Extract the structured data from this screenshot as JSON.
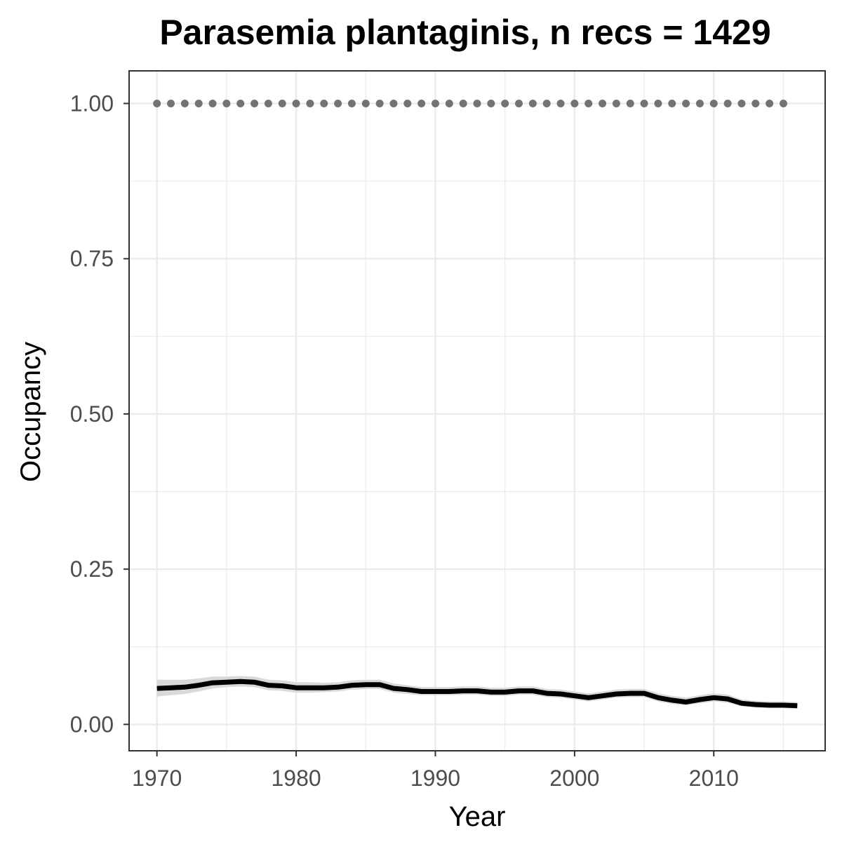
{
  "chart_data": {
    "type": "line",
    "title": "Parasemia plantaginis, n recs = 1429",
    "xlabel": "Year",
    "ylabel": "Occupancy",
    "xlim": [
      1968,
      2018
    ],
    "ylim": [
      -0.0425,
      1.0525
    ],
    "x_ticks": [
      1970,
      1980,
      1990,
      2000,
      2010
    ],
    "x_tick_labels": [
      "1970",
      "1980",
      "1990",
      "2000",
      "2010"
    ],
    "y_ticks": [
      0,
      0.25,
      0.5,
      0.75,
      1.0
    ],
    "y_tick_labels": [
      "0.00",
      "0.25",
      "0.50",
      "0.75",
      "1.00"
    ],
    "grid": true,
    "legend": "none",
    "colors": {
      "occupancy_line": "#000000",
      "confidence_band": "#d9d9d9",
      "reference_dots": "#737373",
      "grid": "#ebebeb",
      "panel_border": "#333333"
    },
    "series": [
      {
        "x": [
          1970,
          1971,
          1972,
          1973,
          1974,
          1975,
          1976,
          1977,
          1978,
          1979,
          1980,
          1981,
          1982,
          1983,
          1984,
          1985,
          1986,
          1987,
          1988,
          1989,
          1990,
          1991,
          1992,
          1993,
          1994,
          1995,
          1996,
          1997,
          1998,
          1999,
          2000,
          2001,
          2002,
          2003,
          2004,
          2005,
          2006,
          2007,
          2008,
          2009,
          2010,
          2011,
          2012,
          2013,
          2014,
          2015,
          2016
        ],
        "y": [
          0.058,
          0.059,
          0.06,
          0.063,
          0.067,
          0.068,
          0.069,
          0.068,
          0.063,
          0.062,
          0.059,
          0.059,
          0.059,
          0.06,
          0.063,
          0.064,
          0.064,
          0.058,
          0.056,
          0.053,
          0.053,
          0.053,
          0.054,
          0.054,
          0.052,
          0.052,
          0.054,
          0.054,
          0.05,
          0.049,
          0.046,
          0.043,
          0.046,
          0.049,
          0.05,
          0.05,
          0.043,
          0.039,
          0.036,
          0.04,
          0.043,
          0.041,
          0.034,
          0.032,
          0.031,
          0.031,
          0.03
        ],
        "lower": [
          0.045,
          0.047,
          0.049,
          0.053,
          0.058,
          0.06,
          0.061,
          0.06,
          0.055,
          0.054,
          0.051,
          0.051,
          0.052,
          0.053,
          0.056,
          0.057,
          0.057,
          0.051,
          0.049,
          0.047,
          0.047,
          0.047,
          0.048,
          0.048,
          0.046,
          0.046,
          0.048,
          0.048,
          0.044,
          0.043,
          0.04,
          0.037,
          0.04,
          0.043,
          0.044,
          0.044,
          0.037,
          0.033,
          0.031,
          0.034,
          0.037,
          0.035,
          0.029,
          0.027,
          0.026,
          0.026,
          0.025
        ],
        "upper": [
          0.072,
          0.072,
          0.072,
          0.074,
          0.077,
          0.077,
          0.078,
          0.077,
          0.072,
          0.071,
          0.068,
          0.068,
          0.067,
          0.068,
          0.071,
          0.072,
          0.072,
          0.066,
          0.063,
          0.06,
          0.06,
          0.06,
          0.061,
          0.061,
          0.059,
          0.059,
          0.061,
          0.061,
          0.057,
          0.056,
          0.053,
          0.05,
          0.053,
          0.056,
          0.057,
          0.057,
          0.05,
          0.046,
          0.043,
          0.047,
          0.05,
          0.048,
          0.04,
          0.038,
          0.037,
          0.037,
          0.036
        ]
      },
      {
        "x": [
          1970,
          1971,
          1972,
          1973,
          1974,
          1975,
          1976,
          1977,
          1978,
          1979,
          1980,
          1981,
          1982,
          1983,
          1984,
          1985,
          1986,
          1987,
          1988,
          1989,
          1990,
          1991,
          1992,
          1993,
          1994,
          1995,
          1996,
          1997,
          1998,
          1999,
          2000,
          2001,
          2002,
          2003,
          2004,
          2005,
          2006,
          2007,
          2008,
          2009,
          2010,
          2011,
          2012,
          2013,
          2014,
          2015
        ],
        "y": [
          1,
          1,
          1,
          1,
          1,
          1,
          1,
          1,
          1,
          1,
          1,
          1,
          1,
          1,
          1,
          1,
          1,
          1,
          1,
          1,
          1,
          1,
          1,
          1,
          1,
          1,
          1,
          1,
          1,
          1,
          1,
          1,
          1,
          1,
          1,
          1,
          1,
          1,
          1,
          1,
          1,
          1,
          1,
          1,
          1,
          1
        ]
      }
    ]
  }
}
